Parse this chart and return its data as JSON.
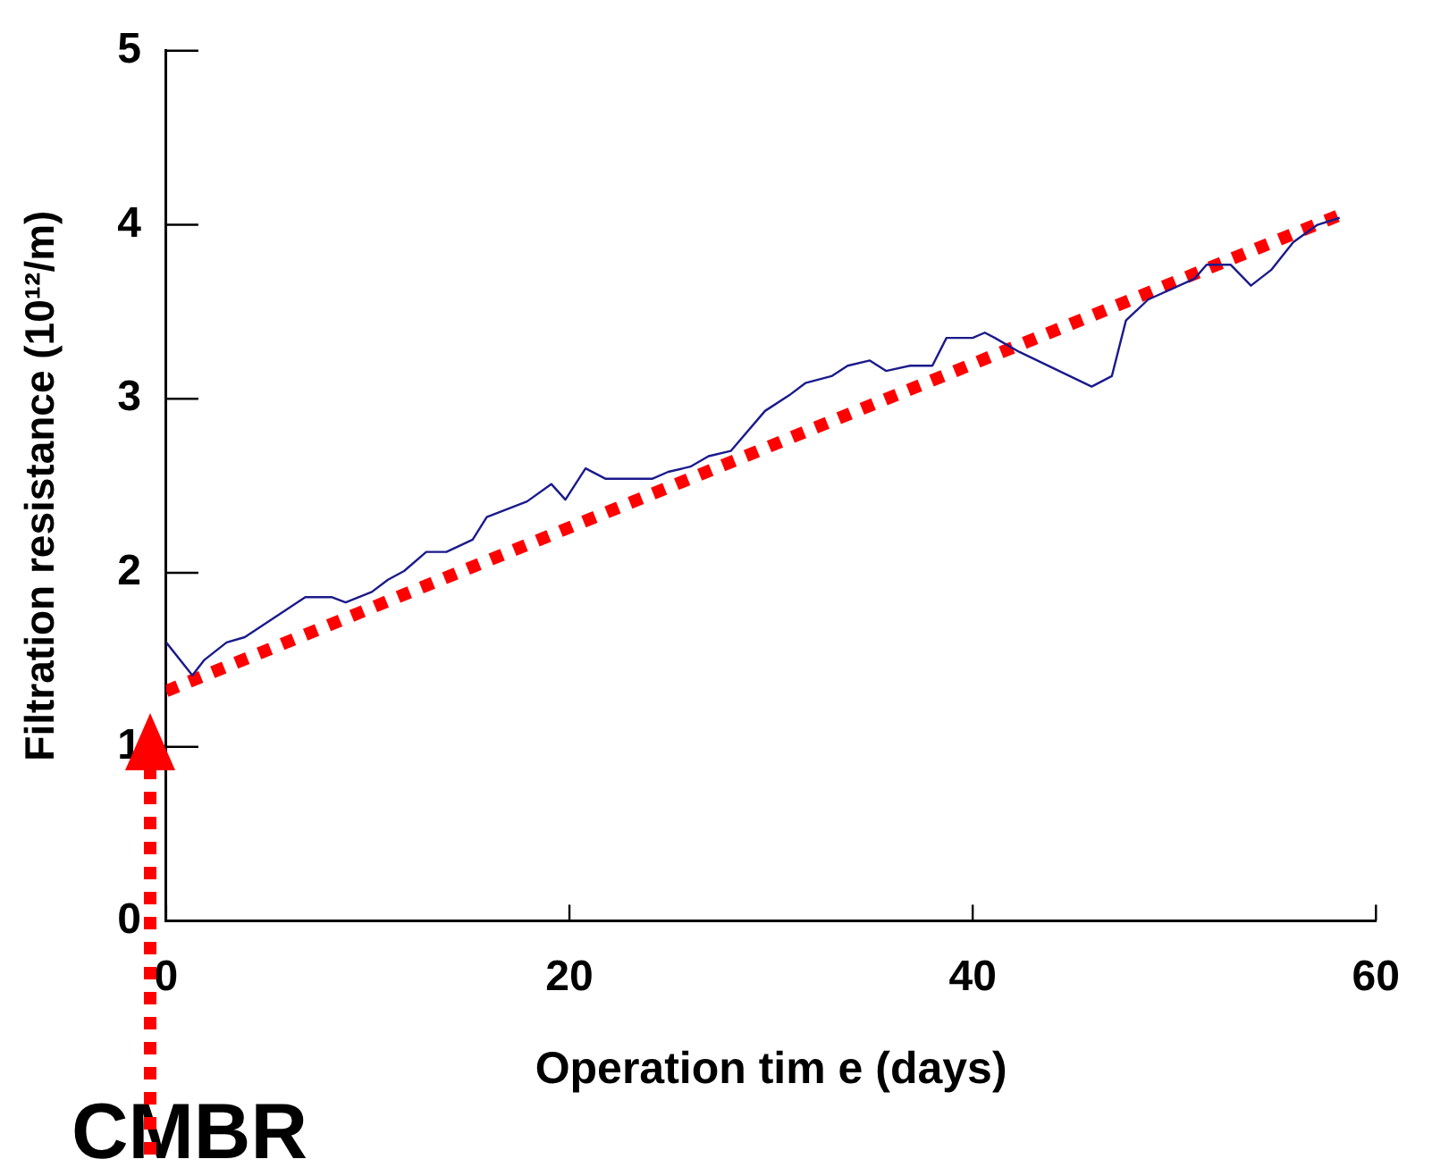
{
  "chart_data": {
    "type": "line",
    "xlabel": "Operation tim e (days)",
    "ylabel": "Filtration resistance (10¹²/m)",
    "xlim": [
      0,
      60
    ],
    "xticks": [
      0,
      20,
      40,
      60
    ],
    "ylim": [
      0,
      5
    ],
    "yticks": [
      0,
      1,
      2,
      3,
      4,
      5
    ],
    "grid": false,
    "legend": false,
    "marker": "none",
    "annotations": [
      "CMBR"
    ],
    "series": [
      {
        "color": "#1a1a8c",
        "line_style": "solid",
        "x": [
          0,
          1.3,
          1.9,
          3.0,
          3.9,
          6.9,
          8.2,
          8.9,
          10.2,
          11.0,
          11.8,
          12.9,
          13.9,
          15.2,
          15.9,
          17.9,
          19.1,
          19.8,
          20.8,
          21.8,
          24.1,
          24.9,
          26.0,
          26.9,
          28.0,
          29.7,
          30.9,
          31.7,
          33.0,
          33.8,
          34.9,
          35.7,
          36.9,
          38.0,
          38.7,
          40.0,
          40.6,
          41.1,
          42.3,
          45.9,
          46.9,
          47.6,
          48.7,
          51.0,
          51.6,
          52.8,
          53.8,
          54.8,
          55.9,
          57.1,
          58.2
        ],
        "values": [
          1.6,
          1.41,
          1.5,
          1.6,
          1.63,
          1.86,
          1.86,
          1.83,
          1.89,
          1.96,
          2.01,
          2.12,
          2.12,
          2.19,
          2.32,
          2.41,
          2.51,
          2.42,
          2.6,
          2.54,
          2.54,
          2.58,
          2.61,
          2.67,
          2.7,
          2.93,
          3.02,
          3.09,
          3.13,
          3.19,
          3.22,
          3.16,
          3.19,
          3.19,
          3.35,
          3.35,
          3.38,
          3.35,
          3.27,
          3.07,
          3.13,
          3.45,
          3.57,
          3.69,
          3.77,
          3.77,
          3.65,
          3.74,
          3.9,
          4.0,
          4.04
        ]
      },
      {
        "color": "#ff0000",
        "line_style": "dotted",
        "x": [
          0,
          58.5
        ],
        "values": [
          1.32,
          4.07
        ]
      }
    ]
  }
}
